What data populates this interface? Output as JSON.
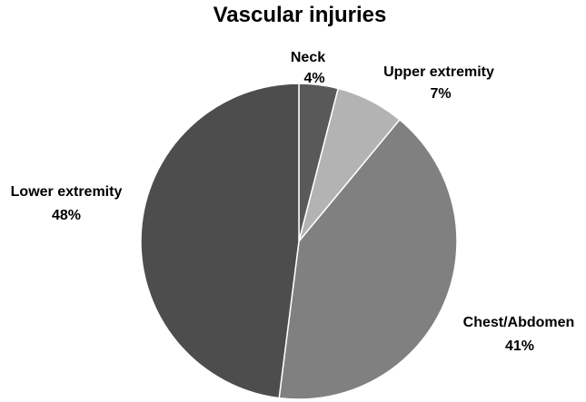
{
  "chart_data": {
    "type": "pie",
    "title": "Vascular injuries",
    "slices": [
      {
        "label": "Neck",
        "value": 4,
        "value_label": "4%",
        "color": "#595959"
      },
      {
        "label": "Upper extremity",
        "value": 7,
        "value_label": "7%",
        "color": "#b3b3b3"
      },
      {
        "label": "Chest/Abdomen",
        "value": 41,
        "value_label": "41%",
        "color": "#808080"
      },
      {
        "label": "Lower extremity",
        "value": 48,
        "value_label": "48%",
        "color": "#4d4d4d"
      }
    ],
    "legend": "none",
    "border_color": "#ffffff"
  }
}
